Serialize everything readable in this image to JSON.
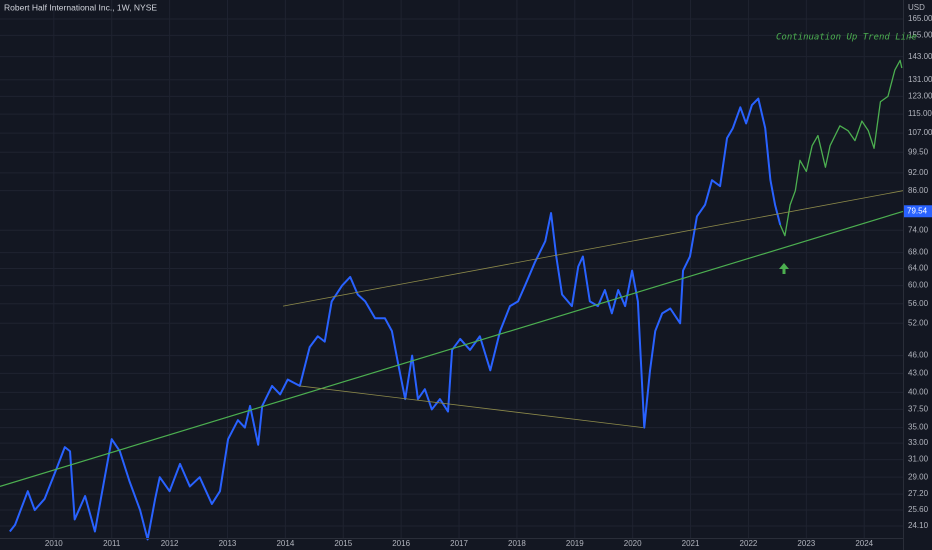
{
  "chart_data": {
    "type": "line",
    "title": "Robert Half International Inc., 1W, NYSE",
    "y_axis_label": "USD",
    "annotation": "Continuation Up Trend Line",
    "log_scale": true,
    "grid": true,
    "xlim": [
      2009.07,
      2024.67
    ],
    "xticks": [
      2010,
      2011,
      2012,
      2013,
      2014,
      2015,
      2016,
      2017,
      2018,
      2019,
      2020,
      2021,
      2022,
      2023,
      2024
    ],
    "ylim": [
      22.85,
      177.3
    ],
    "yticks": [
      {
        "value": 24.1,
        "label": "24.10"
      },
      {
        "value": 25.6,
        "label": "25.60"
      },
      {
        "value": 27.2,
        "label": "27.20"
      },
      {
        "value": 29,
        "label": "29.00"
      },
      {
        "value": 31,
        "label": "31.00"
      },
      {
        "value": 33,
        "label": "33.00"
      },
      {
        "value": 35,
        "label": "35.00"
      },
      {
        "value": 37.5,
        "label": "37.50"
      },
      {
        "value": 40,
        "label": "40.00"
      },
      {
        "value": 43,
        "label": "43.00"
      },
      {
        "value": 46,
        "label": "46.00"
      },
      {
        "value": 52,
        "label": "52.00"
      },
      {
        "value": 56,
        "label": "56.00"
      },
      {
        "value": 60,
        "label": "60.00"
      },
      {
        "value": 64,
        "label": "64.00"
      },
      {
        "value": 68,
        "label": "68.00"
      },
      {
        "value": 74,
        "label": "74.00"
      },
      {
        "value": 86,
        "label": "86.00"
      },
      {
        "value": 92,
        "label": "92.00"
      },
      {
        "value": 99.5,
        "label": "99.50"
      },
      {
        "value": 107,
        "label": "107.00"
      },
      {
        "value": 115,
        "label": "115.00"
      },
      {
        "value": 123,
        "label": "123.00"
      },
      {
        "value": 131,
        "label": "131.00"
      },
      {
        "value": 143,
        "label": "143.00"
      },
      {
        "value": 155,
        "label": "155.00"
      },
      {
        "value": 165,
        "label": "165.00"
      }
    ],
    "last_price": {
      "value": 79.54,
      "label": "79.54",
      "color": "#2962ff"
    },
    "series": [
      {
        "color": "#2962ff",
        "width": 2,
        "x": [
          2009.24,
          2009.33,
          2009.55,
          2009.67,
          2009.84,
          2010.02,
          2010.19,
          2010.28,
          2010.36,
          2010.54,
          2010.71,
          2010.88,
          2011.0,
          2011.14,
          2011.31,
          2011.49,
          2011.62,
          2011.75,
          2011.83,
          2012.0,
          2012.18,
          2012.35,
          2012.52,
          2012.73,
          2012.87,
          2013.01,
          2013.18,
          2013.3,
          2013.39,
          2013.53,
          2013.6,
          2013.77,
          2013.91,
          2014.04,
          2014.25,
          2014.42,
          2014.56,
          2014.68,
          2014.8,
          2014.98,
          2015.12,
          2015.25,
          2015.38,
          2015.55,
          2015.72,
          2015.84,
          2015.95,
          2016.07,
          2016.19,
          2016.29,
          2016.41,
          2016.53,
          2016.67,
          2016.81,
          2016.88,
          2017.02,
          2017.19,
          2017.36,
          2017.54,
          2017.71,
          2017.88,
          2018.02,
          2018.14,
          2018.31,
          2018.49,
          2018.59,
          2018.68,
          2018.78,
          2018.95,
          2019.06,
          2019.14,
          2019.26,
          2019.4,
          2019.52,
          2019.64,
          2019.75,
          2019.87,
          2019.99,
          2020.09,
          2020.2,
          2020.3,
          2020.39,
          2020.51,
          2020.65,
          2020.82,
          2020.87,
          2020.99,
          2021.11,
          2021.25,
          2021.37,
          2021.51,
          2021.63,
          2021.73,
          2021.86,
          2021.96,
          2022.06,
          2022.17,
          2022.29,
          2022.38,
          2022.46,
          2022.55
        ],
        "values": [
          23.6,
          24.2,
          27.5,
          25.6,
          26.7,
          29.5,
          32.5,
          32,
          24.7,
          27,
          23.6,
          29,
          33.5,
          32,
          28.5,
          25.6,
          22.9,
          26.7,
          29,
          27.5,
          30.5,
          28,
          29,
          26.2,
          27.5,
          33.5,
          36,
          35,
          38,
          32.8,
          38,
          41,
          39.7,
          42,
          41,
          47.5,
          49.5,
          48.5,
          56.5,
          60,
          62,
          58,
          56.5,
          53,
          53,
          50.5,
          44.5,
          39,
          46,
          39,
          40.5,
          37.5,
          39,
          37.2,
          47,
          49,
          47,
          49.5,
          43.5,
          50.5,
          55.5,
          56.5,
          60,
          65.5,
          71,
          79,
          67,
          58,
          55.5,
          64.5,
          67,
          56.5,
          55.5,
          59,
          54,
          59,
          55.5,
          63.5,
          56.5,
          35,
          43.5,
          50.5,
          54,
          55,
          52,
          63.5,
          67,
          78,
          81.5,
          89.5,
          87.5,
          105,
          109,
          118,
          111,
          119,
          122,
          109,
          89.5,
          81.5,
          75.5
        ]
      },
      {
        "color": "#4caf50",
        "width": 1.3,
        "x": [
          2022.55,
          2022.63,
          2022.72,
          2022.81,
          2022.89,
          2023.0,
          2023.1,
          2023.2,
          2023.33,
          2023.41,
          2023.58,
          2023.72,
          2023.84,
          2023.96,
          2024.07,
          2024.17,
          2024.28,
          2024.41,
          2024.53,
          2024.62,
          2024.65
        ],
        "values": [
          75.5,
          72.5,
          81.5,
          86,
          96.5,
          92.5,
          102,
          106,
          94,
          102,
          110,
          108,
          104,
          112,
          108,
          101,
          120.5,
          123,
          136,
          141,
          137
        ]
      },
      {
        "color": "#4caf50",
        "width": 1.2,
        "x": [
          2009.07,
          2024.67
        ],
        "values": [
          28,
          79.5
        ]
      },
      {
        "color": "#8d8a4a",
        "width": 0.8,
        "x": [
          2013.96,
          2024.67
        ],
        "values": [
          55.5,
          86
        ]
      },
      {
        "color": "#8d8a4a",
        "width": 0.8,
        "x": [
          2014.25,
          2020.18
        ],
        "values": [
          41,
          35
        ]
      }
    ]
  }
}
